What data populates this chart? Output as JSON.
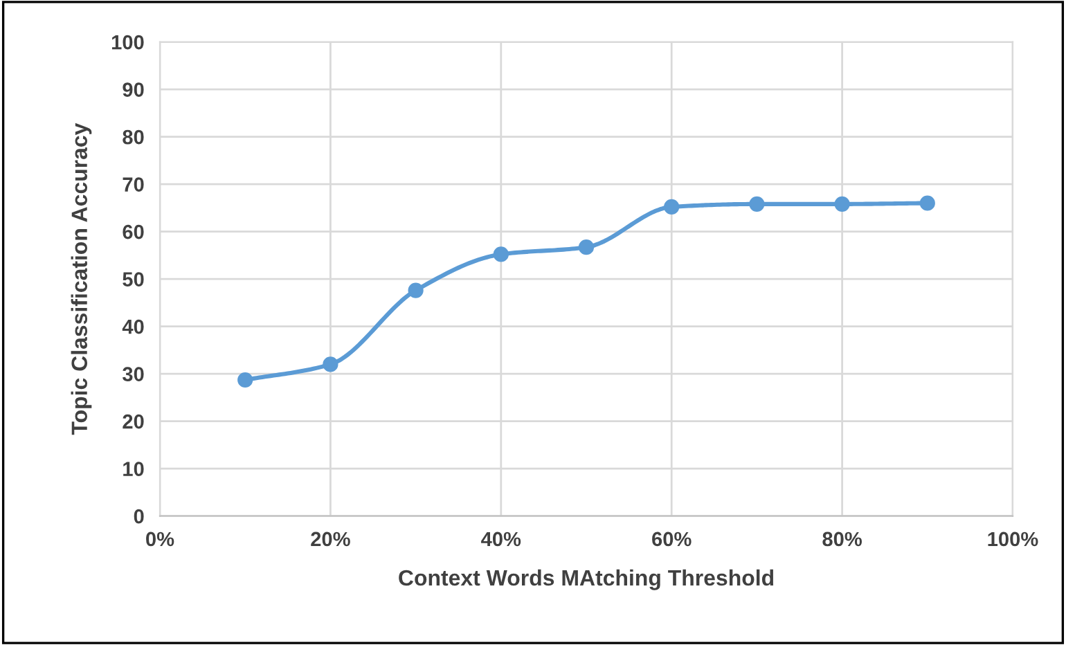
{
  "chart_data": {
    "type": "line",
    "xlabel": "Context Words MAtching Threshold",
    "ylabel": "Topic Classification Accuracy",
    "x": [
      10,
      20,
      30,
      40,
      50,
      60,
      70,
      80,
      90
    ],
    "series": [
      {
        "color": "#5b9bd5",
        "values": [
          28.7,
          32,
          47.6,
          55.2,
          56.7,
          65.2,
          65.8,
          65.8,
          66
        ]
      }
    ],
    "xlim": [
      0,
      100
    ],
    "xticks": [
      {
        "value": 0,
        "label": "0%"
      },
      {
        "value": 20,
        "label": "20%"
      },
      {
        "value": 40,
        "label": "40%"
      },
      {
        "value": 60,
        "label": "60%"
      },
      {
        "value": 80,
        "label": "80%"
      },
      {
        "value": 100,
        "label": "100%"
      }
    ],
    "ylim": [
      0,
      100
    ],
    "yticks": [
      0,
      10,
      20,
      30,
      40,
      50,
      60,
      70,
      80,
      90,
      100
    ],
    "grid": true,
    "marker": "circle",
    "line_style": "solid",
    "legend": false
  }
}
